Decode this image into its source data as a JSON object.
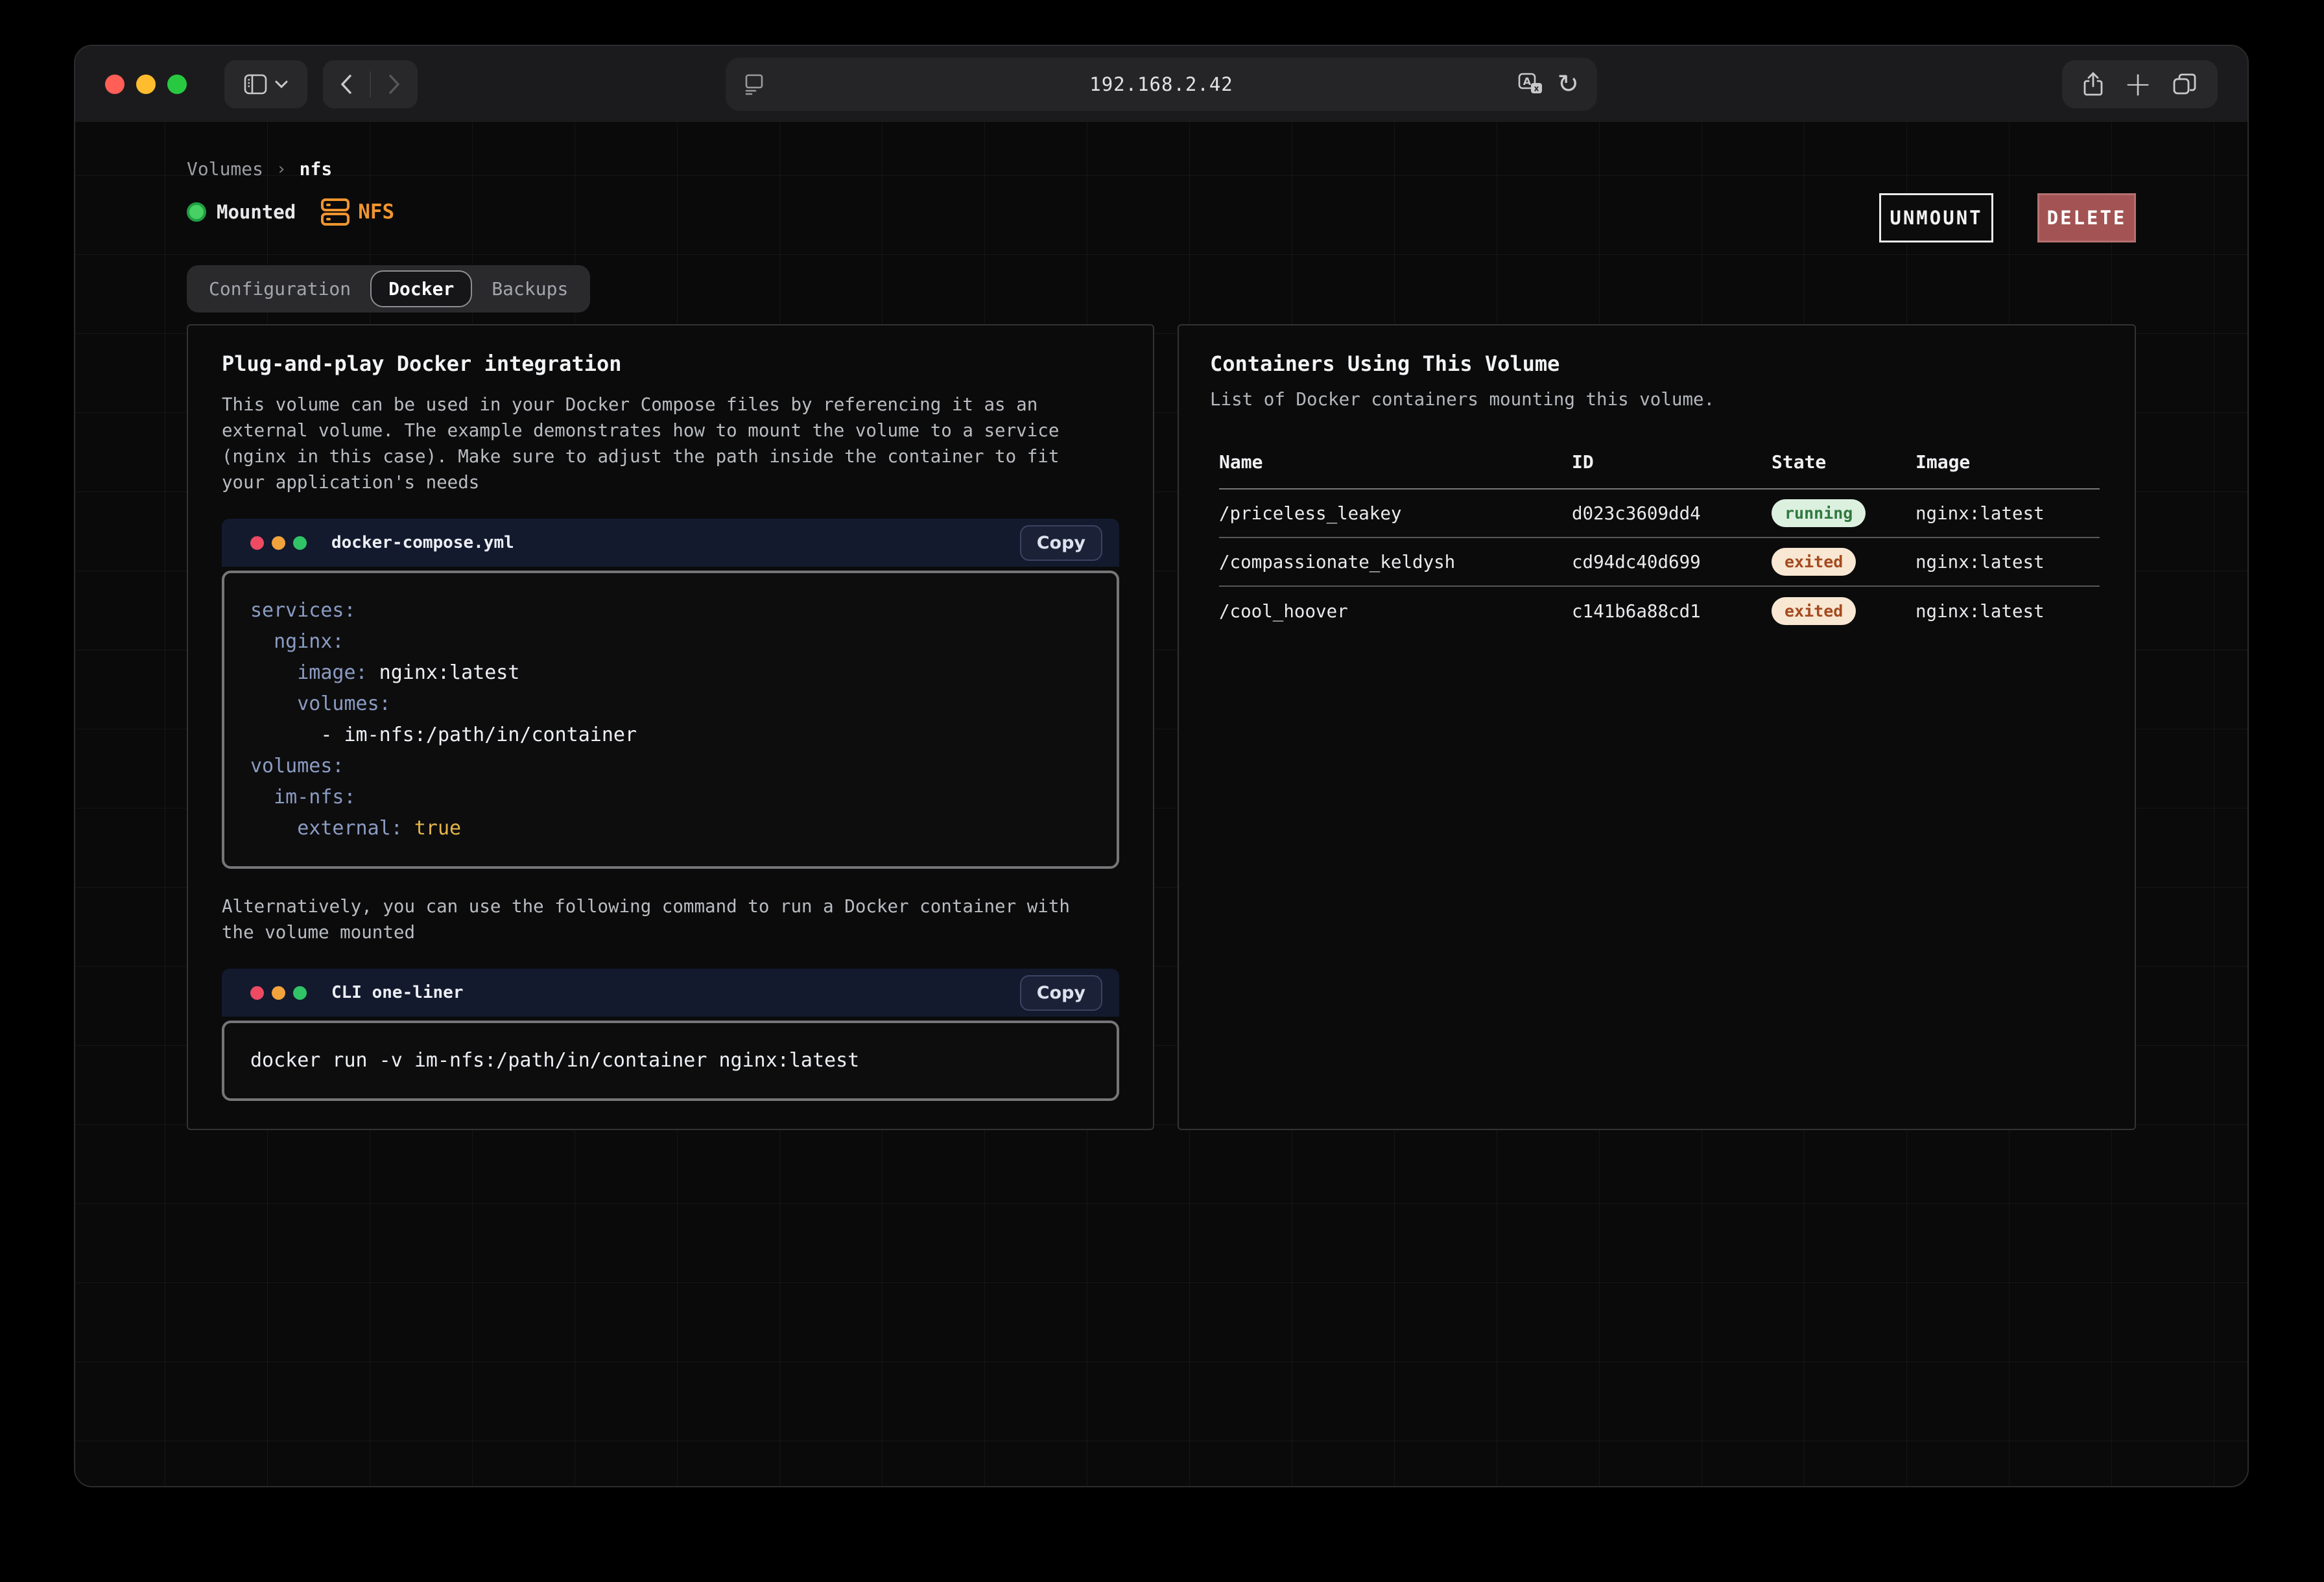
{
  "browser": {
    "url": "192.168.2.42",
    "plus_glyph": "+",
    "reload_glyph": "↻"
  },
  "breadcrumb": {
    "parent": "Volumes",
    "separator": "›",
    "current": "nfs"
  },
  "status": {
    "mounted_label": "Mounted",
    "volume_type": "NFS"
  },
  "actions": {
    "unmount_label": "UNMOUNT",
    "delete_label": "DELETE"
  },
  "tabs": [
    {
      "label": "Configuration",
      "active": false
    },
    {
      "label": "Docker",
      "active": true
    },
    {
      "label": "Backups",
      "active": false
    }
  ],
  "docker_panel": {
    "title": "Plug-and-play Docker integration",
    "description": "This volume can be used in your Docker Compose files by referencing it as an external volume. The example demonstrates how to mount the volume to a service (nginx in this case). Make sure to adjust the path inside the container to fit your application's needs",
    "compose_block": {
      "filename": "docker-compose.yml",
      "copy_label": "Copy",
      "lines": [
        [
          {
            "c": "key",
            "t": "services:"
          }
        ],
        [
          {
            "c": "key",
            "t": "  nginx:"
          }
        ],
        [
          {
            "c": "key",
            "t": "    image:"
          },
          {
            "c": "val",
            "t": " nginx:latest"
          }
        ],
        [
          {
            "c": "key",
            "t": "    volumes:"
          }
        ],
        [
          {
            "c": "val",
            "t": "      - im-nfs:/path/in/container"
          }
        ],
        [
          {
            "c": "key",
            "t": "volumes:"
          }
        ],
        [
          {
            "c": "key",
            "t": "  im-nfs:"
          }
        ],
        [
          {
            "c": "key",
            "t": "    external:"
          },
          {
            "c": "val",
            "t": " "
          },
          {
            "c": "bool",
            "t": "true"
          }
        ]
      ]
    },
    "cli_intro": "Alternatively, you can use the following command to run a Docker container with the volume mounted",
    "cli_block": {
      "filename": "CLI one-liner",
      "copy_label": "Copy",
      "lines": [
        [
          {
            "c": "val",
            "t": "docker run -v im-nfs:/path/in/container nginx:latest"
          }
        ]
      ]
    }
  },
  "containers_panel": {
    "title": "Containers Using This Volume",
    "subtitle": "List of Docker containers mounting this volume.",
    "columns": [
      "Name",
      "ID",
      "State",
      "Image"
    ],
    "rows": [
      {
        "name": "/priceless_leakey",
        "id": "d023c3609dd4",
        "state": "running",
        "image": "nginx:latest"
      },
      {
        "name": "/compassionate_keldysh",
        "id": "cd94dc40d699",
        "state": "exited",
        "image": "nginx:latest"
      },
      {
        "name": "/cool_hoover",
        "id": "c141b6a88cd1",
        "state": "exited",
        "image": "nginx:latest"
      }
    ]
  },
  "colors": {
    "accent_orange": "#f0952f",
    "mounted_green": "#46d162",
    "running_badge_bg": "#dcf0e0",
    "running_badge_text": "#30793f",
    "exited_badge_bg": "#f8e7d2",
    "exited_badge_text": "#a44a20",
    "delete_button_bg": "#a35353",
    "yaml_key": "#8b9cc2",
    "yaml_bool": "#e5b54a",
    "code_header_bg": "#131a2e"
  }
}
